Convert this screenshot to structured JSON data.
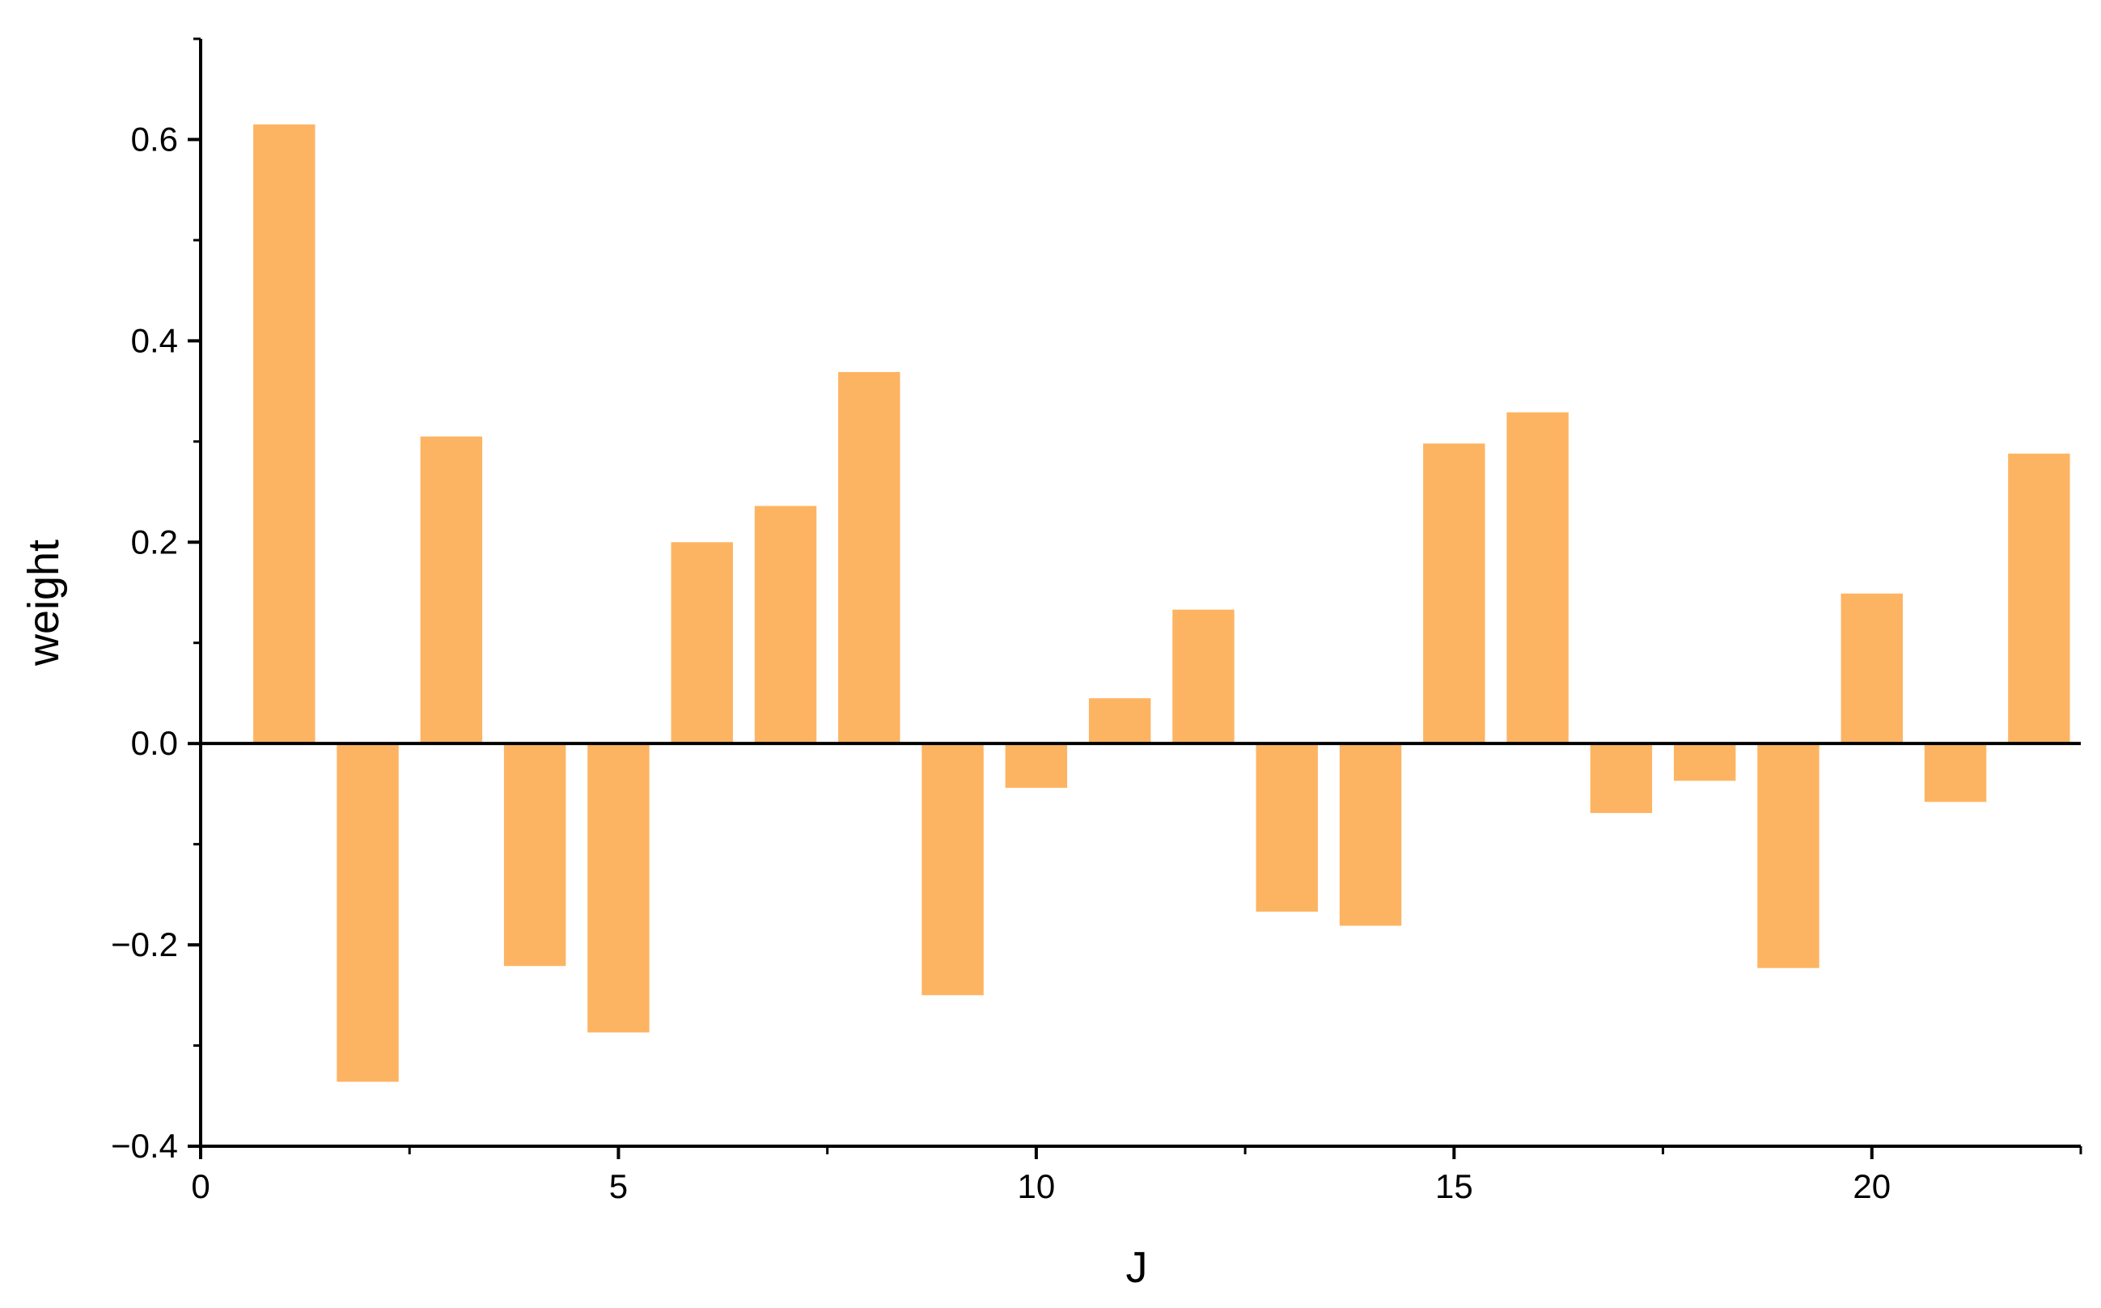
{
  "chart_data": {
    "type": "bar",
    "title": "",
    "xlabel": "J",
    "ylabel": "weight",
    "xlim": [
      0,
      22.5
    ],
    "ylim": [
      -0.4,
      0.7
    ],
    "x_ticks": [
      0,
      5,
      10,
      15,
      20
    ],
    "x_tick_labels": [
      "0",
      "5",
      "10",
      "15",
      "20"
    ],
    "y_ticks": [
      -0.4,
      -0.2,
      0.0,
      0.2,
      0.4,
      0.6
    ],
    "y_tick_labels": [
      "−0.4",
      "−0.2",
      "0.0",
      "0.2",
      "0.4",
      "0.6"
    ],
    "grid": false,
    "bar_color": "#FDB462",
    "categories": [
      1,
      2,
      3,
      4,
      5,
      6,
      7,
      8,
      9,
      10,
      11,
      12,
      13,
      14,
      15,
      16,
      17,
      18,
      19,
      20,
      21,
      22
    ],
    "values": [
      0.615,
      -0.336,
      0.305,
      -0.221,
      -0.287,
      0.2,
      0.236,
      0.369,
      -0.25,
      -0.044,
      0.045,
      0.133,
      -0.167,
      -0.181,
      0.298,
      0.329,
      -0.069,
      -0.037,
      -0.223,
      0.149,
      -0.058,
      0.288
    ]
  }
}
